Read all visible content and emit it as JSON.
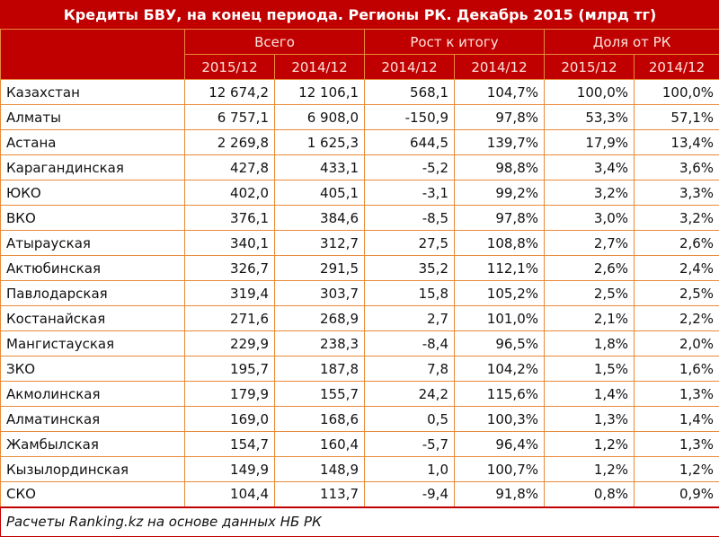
{
  "title": "Кредиты БВУ, на конец периода. Регионы РК. Декабрь 2015 (млрд тг)",
  "groups": [
    "Всего",
    "Рост к итогу",
    "Доля от РК"
  ],
  "periods": [
    "2015/12",
    "2014/12",
    "2014/12",
    "2014/12",
    "2015/12",
    "2014/12"
  ],
  "rows": [
    [
      "Казахстан",
      "12 674,2",
      "12 106,1",
      "568,1",
      "104,7%",
      "100,0%",
      "100,0%"
    ],
    [
      "Алматы",
      "6 757,1",
      "6 908,0",
      "-150,9",
      "97,8%",
      "53,3%",
      "57,1%"
    ],
    [
      "Астана",
      "2 269,8",
      "1 625,3",
      "644,5",
      "139,7%",
      "17,9%",
      "13,4%"
    ],
    [
      "Карагандинская",
      "427,8",
      "433,1",
      "-5,2",
      "98,8%",
      "3,4%",
      "3,6%"
    ],
    [
      "ЮКО",
      "402,0",
      "405,1",
      "-3,1",
      "99,2%",
      "3,2%",
      "3,3%"
    ],
    [
      "ВКО",
      "376,1",
      "384,6",
      "-8,5",
      "97,8%",
      "3,0%",
      "3,2%"
    ],
    [
      "Атырауская",
      "340,1",
      "312,7",
      "27,5",
      "108,8%",
      "2,7%",
      "2,6%"
    ],
    [
      "Актюбинская",
      "326,7",
      "291,5",
      "35,2",
      "112,1%",
      "2,6%",
      "2,4%"
    ],
    [
      "Павлодарская",
      "319,4",
      "303,7",
      "15,8",
      "105,2%",
      "2,5%",
      "2,5%"
    ],
    [
      "Костанайская",
      "271,6",
      "268,9",
      "2,7",
      "101,0%",
      "2,1%",
      "2,2%"
    ],
    [
      "Мангистауская",
      "229,9",
      "238,3",
      "-8,4",
      "96,5%",
      "1,8%",
      "2,0%"
    ],
    [
      "ЗКО",
      "195,7",
      "187,8",
      "7,8",
      "104,2%",
      "1,5%",
      "1,6%"
    ],
    [
      "Акмолинская",
      "179,9",
      "155,7",
      "24,2",
      "115,6%",
      "1,4%",
      "1,3%"
    ],
    [
      "Алматинская",
      "169,0",
      "168,6",
      "0,5",
      "100,3%",
      "1,3%",
      "1,4%"
    ],
    [
      "Жамбылская",
      "154,7",
      "160,4",
      "-5,7",
      "96,4%",
      "1,2%",
      "1,3%"
    ],
    [
      "Кызылординская",
      "149,9",
      "148,9",
      "1,0",
      "100,7%",
      "1,2%",
      "1,2%"
    ],
    [
      "СКО",
      "104,4",
      "113,7",
      "-9,4",
      "91,8%",
      "0,8%",
      "0,9%"
    ]
  ],
  "footer": "Расчеты Ranking.kz на основе данных НБ РК",
  "colors": {
    "header_bg": "#c00000",
    "border": "#e88a3a"
  }
}
